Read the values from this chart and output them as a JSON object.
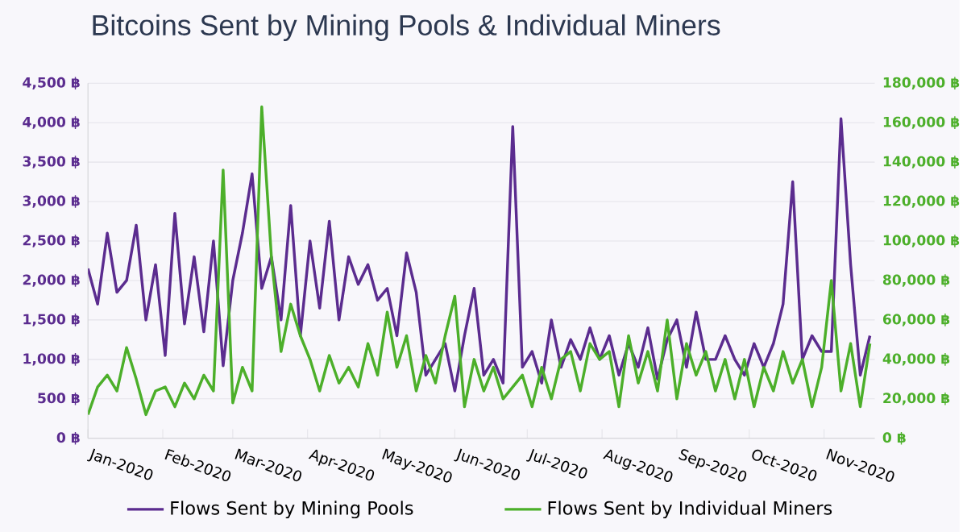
{
  "chart_data": {
    "type": "line",
    "title": "Bitcoins Sent by Mining Pools & Individual Miners",
    "x": [
      "2020-01-01",
      "2020-01-05",
      "2020-01-09",
      "2020-01-13",
      "2020-01-17",
      "2020-01-21",
      "2020-01-25",
      "2020-01-29",
      "2020-02-02",
      "2020-02-06",
      "2020-02-10",
      "2020-02-14",
      "2020-02-18",
      "2020-02-22",
      "2020-02-26",
      "2020-03-01",
      "2020-03-05",
      "2020-03-09",
      "2020-03-13",
      "2020-03-17",
      "2020-03-21",
      "2020-03-25",
      "2020-03-29",
      "2020-04-02",
      "2020-04-06",
      "2020-04-10",
      "2020-04-14",
      "2020-04-18",
      "2020-04-22",
      "2020-04-26",
      "2020-04-30",
      "2020-05-04",
      "2020-05-08",
      "2020-05-12",
      "2020-05-16",
      "2020-05-20",
      "2020-05-24",
      "2020-05-28",
      "2020-06-01",
      "2020-06-05",
      "2020-06-09",
      "2020-06-13",
      "2020-06-17",
      "2020-06-21",
      "2020-06-25",
      "2020-06-29",
      "2020-07-03",
      "2020-07-07",
      "2020-07-11",
      "2020-07-15",
      "2020-07-19",
      "2020-07-23",
      "2020-07-27",
      "2020-07-31",
      "2020-08-04",
      "2020-08-08",
      "2020-08-12",
      "2020-08-16",
      "2020-08-20",
      "2020-08-24",
      "2020-08-28",
      "2020-09-01",
      "2020-09-05",
      "2020-09-09",
      "2020-09-13",
      "2020-09-17",
      "2020-09-21",
      "2020-09-25",
      "2020-09-29",
      "2020-10-03",
      "2020-10-07",
      "2020-10-11",
      "2020-10-15",
      "2020-10-19",
      "2020-10-23",
      "2020-10-27",
      "2020-10-31",
      "2020-11-04",
      "2020-11-08",
      "2020-11-12",
      "2020-11-16",
      "2020-11-20"
    ],
    "series": [
      {
        "name": "Flows Sent by Mining Pools",
        "color": "#5b2c8f",
        "values": [
          2150,
          1700,
          2600,
          1850,
          2000,
          2700,
          1500,
          2200,
          1050,
          2850,
          1450,
          2300,
          1350,
          2500,
          920,
          2000,
          2600,
          3350,
          1900,
          2300,
          1500,
          2950,
          1300,
          2500,
          1650,
          2750,
          1500,
          2300,
          1950,
          2200,
          1750,
          1900,
          1300,
          2350,
          1850,
          800,
          1000,
          1200,
          600,
          1300,
          1900,
          800,
          1000,
          700,
          3950,
          900,
          1100,
          700,
          1500,
          900,
          1250,
          1000,
          1400,
          1000,
          1300,
          800,
          1200,
          900,
          1400,
          750,
          1250,
          1500,
          900,
          1600,
          1000,
          1000,
          1300,
          1000,
          800,
          1200,
          900,
          1200,
          1700,
          3250,
          1000,
          1300,
          1100,
          1100,
          4050,
          2200,
          800,
          1300
        ]
      },
      {
        "name": "Flows Sent by Individual Miners",
        "color": "#4caf2a",
        "axis": "y2",
        "values": [
          12000,
          26000,
          32000,
          24000,
          46000,
          30000,
          12000,
          24000,
          26000,
          16000,
          28000,
          20000,
          32000,
          24000,
          136000,
          18000,
          36000,
          24000,
          168000,
          92000,
          44000,
          68000,
          52000,
          40000,
          24000,
          42000,
          28000,
          36000,
          26000,
          48000,
          32000,
          64000,
          36000,
          52000,
          24000,
          42000,
          28000,
          52000,
          72000,
          16000,
          40000,
          24000,
          36000,
          20000,
          26000,
          32000,
          16000,
          36000,
          20000,
          40000,
          44000,
          24000,
          48000,
          40000,
          44000,
          16000,
          52000,
          28000,
          44000,
          24000,
          60000,
          20000,
          48000,
          32000,
          44000,
          24000,
          40000,
          20000,
          40000,
          16000,
          36000,
          24000,
          44000,
          28000,
          40000,
          16000,
          36000,
          80000,
          24000,
          48000,
          16000,
          48000
        ]
      }
    ],
    "xlim": [
      "2020-01-01",
      "2020-11-22"
    ],
    "xticks": [
      {
        "value": "2020-01-01",
        "label": "Jan-2020"
      },
      {
        "value": "2020-02-01",
        "label": "Feb-2020"
      },
      {
        "value": "2020-03-01",
        "label": "Mar-2020"
      },
      {
        "value": "2020-04-01",
        "label": "Apr-2020"
      },
      {
        "value": "2020-05-01",
        "label": "May-2020"
      },
      {
        "value": "2020-06-01",
        "label": "Jun-2020"
      },
      {
        "value": "2020-07-01",
        "label": "Jul-2020"
      },
      {
        "value": "2020-08-01",
        "label": "Aug-2020"
      },
      {
        "value": "2020-09-01",
        "label": "Sep-2020"
      },
      {
        "value": "2020-10-01",
        "label": "Oct-2020"
      },
      {
        "value": "2020-11-01",
        "label": "Nov-2020"
      }
    ],
    "ylim": [
      0,
      4500
    ],
    "yticks": [
      {
        "value": 0,
        "label": "0 ฿"
      },
      {
        "value": 500,
        "label": "500 ฿"
      },
      {
        "value": 1000,
        "label": "1,000 ฿"
      },
      {
        "value": 1500,
        "label": "1,500 ฿"
      },
      {
        "value": 2000,
        "label": "2,000 ฿"
      },
      {
        "value": 2500,
        "label": "2,500 ฿"
      },
      {
        "value": 3000,
        "label": "3,000 ฿"
      },
      {
        "value": 3500,
        "label": "3,500 ฿"
      },
      {
        "value": 4000,
        "label": "4,000 ฿"
      },
      {
        "value": 4500,
        "label": "4,500 ฿"
      }
    ],
    "y2lim": [
      0,
      180000
    ],
    "y2ticks": [
      {
        "value": 0,
        "label": "0 ฿"
      },
      {
        "value": 20000,
        "label": "20,000 ฿"
      },
      {
        "value": 40000,
        "label": "40,000 ฿"
      },
      {
        "value": 60000,
        "label": "60,000 ฿"
      },
      {
        "value": 80000,
        "label": "80,000 ฿"
      },
      {
        "value": 100000,
        "label": "100,000 ฿"
      },
      {
        "value": 120000,
        "label": "120,000 ฿"
      },
      {
        "value": 140000,
        "label": "140,000 ฿"
      },
      {
        "value": 160000,
        "label": "160,000 ฿"
      },
      {
        "value": 180000,
        "label": "180,000 ฿"
      }
    ],
    "grid": "y",
    "legend": "bottom",
    "marker": "none",
    "line_style": "solid"
  }
}
